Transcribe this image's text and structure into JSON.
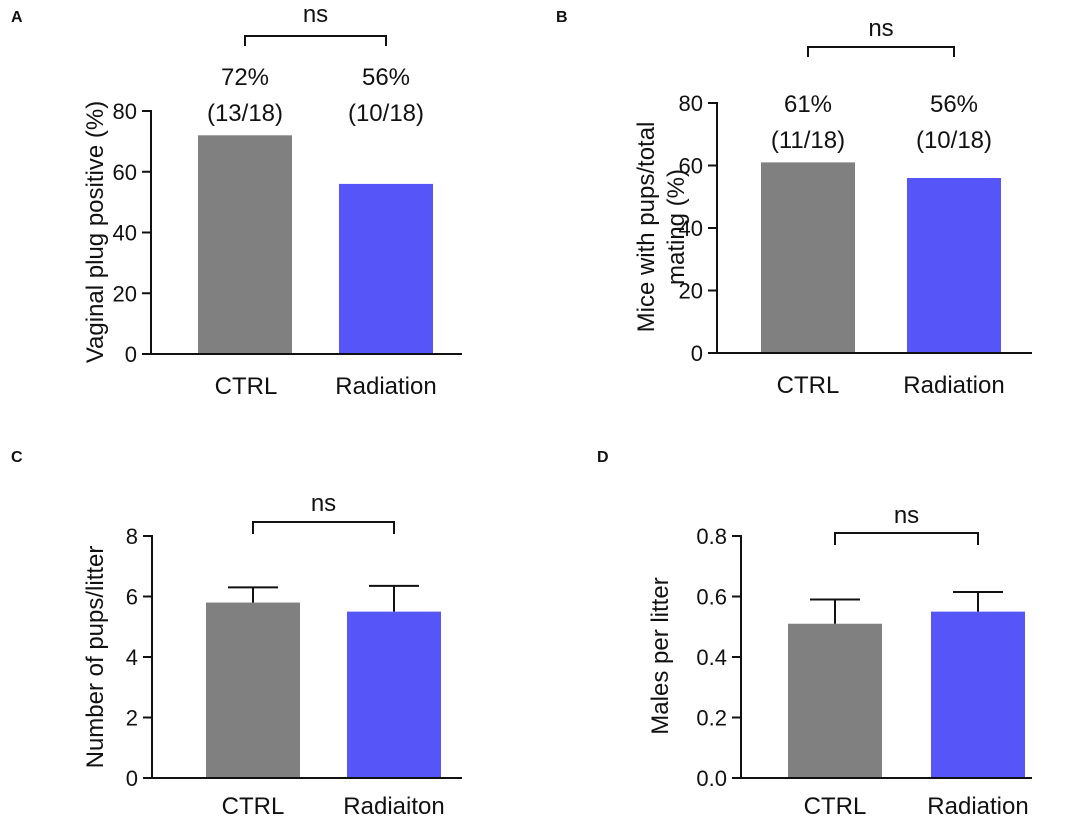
{
  "chart_data": [
    {
      "panel": "A",
      "type": "bar",
      "categories": [
        "CTRL",
        "Radiation"
      ],
      "values": [
        72,
        56
      ],
      "colors": [
        "#808080",
        "#5555f8"
      ],
      "ylabel": "Vaginal plug positive (%)",
      "ylabel_lines": [
        "Vaginal plug positive (%)"
      ],
      "ylim": [
        0,
        80
      ],
      "yticks": [
        "0",
        "20",
        "40",
        "60",
        "80"
      ],
      "yticks_values": [
        0,
        20,
        40,
        60,
        80
      ],
      "data_labels": [
        [
          "72%",
          "(13/18)"
        ],
        [
          "56%",
          "(10/18)"
        ]
      ],
      "significance": "ns",
      "error_bars": null
    },
    {
      "panel": "B",
      "type": "bar",
      "categories": [
        "CTRL",
        "Radiation"
      ],
      "values": [
        61,
        56
      ],
      "colors": [
        "#808080",
        "#5555f8"
      ],
      "ylabel": "Mice with pups/total mating (%)",
      "ylabel_lines": [
        "Mice with pups/total",
        "mating (%)"
      ],
      "ylim": [
        0,
        80
      ],
      "yticks": [
        "0",
        "20",
        "40",
        "60",
        "80"
      ],
      "yticks_values": [
        0,
        20,
        40,
        60,
        80
      ],
      "data_labels": [
        [
          "61%",
          "(11/18)"
        ],
        [
          "56%",
          "(10/18)"
        ]
      ],
      "significance": "ns",
      "error_bars": null
    },
    {
      "panel": "C",
      "type": "bar",
      "categories": [
        "CTRL",
        "Radiaiton"
      ],
      "values": [
        5.8,
        5.5
      ],
      "colors": [
        "#808080",
        "#5555f8"
      ],
      "ylabel": "Number of pups/litter",
      "ylabel_lines": [
        "Number of pups/litter"
      ],
      "ylim": [
        0,
        8
      ],
      "yticks": [
        "0",
        "2",
        "4",
        "6",
        "8"
      ],
      "yticks_values": [
        0,
        2,
        4,
        6,
        8
      ],
      "data_labels": null,
      "significance": "ns",
      "error_bars": [
        0.5,
        0.85
      ]
    },
    {
      "panel": "D",
      "type": "bar",
      "categories": [
        "CTRL",
        "Radiation"
      ],
      "values": [
        0.51,
        0.55
      ],
      "colors": [
        "#808080",
        "#5555f8"
      ],
      "ylabel": "Males per litter",
      "ylabel_lines": [
        "Males per litter"
      ],
      "ylim": [
        0,
        0.8
      ],
      "yticks": [
        "0.0",
        "0.2",
        "0.4",
        "0.6",
        "0.8"
      ],
      "yticks_values": [
        0,
        0.2,
        0.4,
        0.6,
        0.8
      ],
      "data_labels": null,
      "significance": "ns",
      "error_bars": [
        0.08,
        0.065
      ]
    }
  ]
}
